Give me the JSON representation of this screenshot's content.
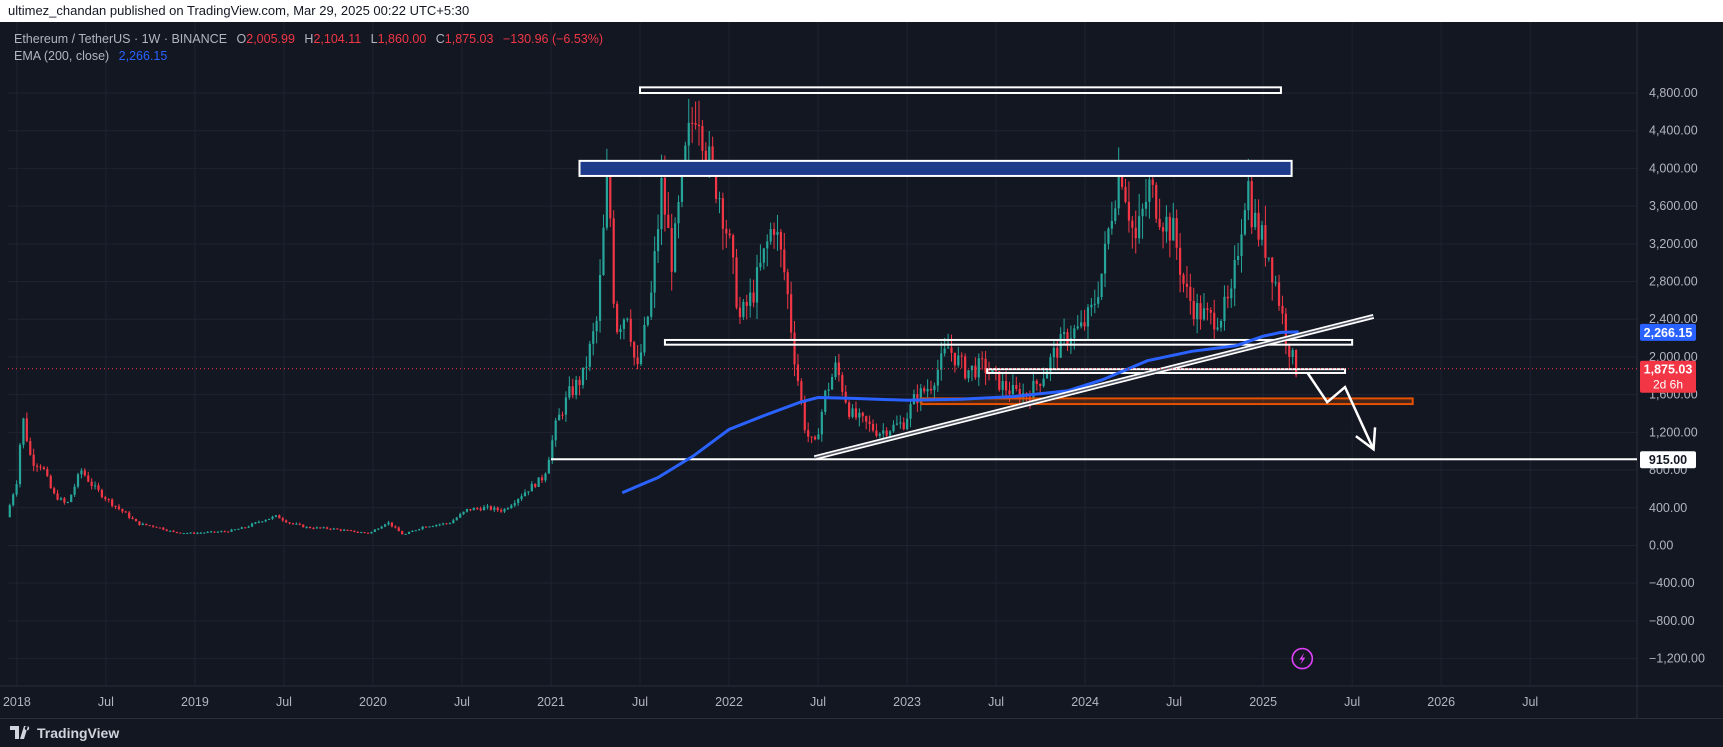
{
  "header": {
    "published": "ultimez_chandan published on TradingView.com, Mar 29, 2025 00:22 UTC+5:30"
  },
  "legend": {
    "symbol": "Ethereum / TetherUS · 1W · BINANCE",
    "open_label": "O",
    "open": "2,005.99",
    "high_label": "H",
    "high": "2,104.11",
    "low_label": "L",
    "low": "1,860.00",
    "close_label": "C",
    "close": "1,875.03",
    "change": "−130.96 (−6.53%)",
    "ema_label": "EMA (200, close)",
    "ema_value": "2,266.15"
  },
  "footer": {
    "brand": "TradingView"
  },
  "colors": {
    "background": "#131722",
    "up": "#26a69a",
    "down": "#f23645",
    "ema": "#2962ff",
    "zone_fill": "#1e3a8a",
    "support_zone": "#e65100"
  },
  "icons": [
    "tradingview-logo-icon",
    "lightning-icon"
  ],
  "chart_data": {
    "type": "candlestick",
    "symbol": "Ethereum / TetherUS",
    "timeframe": "1W",
    "ylim": [
      -1300,
      5150
    ],
    "y_ticks": [
      4800,
      4400,
      4000,
      3600,
      3200,
      2800,
      2400,
      2000,
      1600,
      1200,
      800,
      400,
      0,
      -400,
      -800,
      -1200
    ],
    "y_tick_labels": [
      "4,800.00",
      "4,400.00",
      "4,000.00",
      "3,600.00",
      "3,200.00",
      "2,800.00",
      "2,400.00",
      "2,000.00",
      "1,600.00",
      "1,200.00",
      "800.00",
      "400.00",
      "0.00",
      "−400.00",
      "−800.00",
      "−1,200.00"
    ],
    "x_ticks": [
      "2018",
      "Jul",
      "2019",
      "Jul",
      "2020",
      "Jul",
      "2021",
      "Jul",
      "2022",
      "Jul",
      "2023",
      "Jul",
      "2024",
      "Jul",
      "2025",
      "Jul",
      "2026",
      "Jul"
    ],
    "x_tick_dates": [
      2018.0,
      2018.5,
      2019.0,
      2019.5,
      2020.0,
      2020.5,
      2021.0,
      2021.5,
      2022.0,
      2022.5,
      2023.0,
      2023.5,
      2024.0,
      2024.5,
      2025.0,
      2025.5,
      2026.0,
      2026.5
    ],
    "x_range": [
      2017.95,
      2027.1
    ],
    "price_path": [
      [
        2017.96,
        300
      ],
      [
        2018.02,
        700
      ],
      [
        2018.05,
        1380
      ],
      [
        2018.1,
        900
      ],
      [
        2018.16,
        850
      ],
      [
        2018.22,
        550
      ],
      [
        2018.3,
        430
      ],
      [
        2018.38,
        800
      ],
      [
        2018.45,
        620
      ],
      [
        2018.55,
        450
      ],
      [
        2018.62,
        350
      ],
      [
        2018.7,
        230
      ],
      [
        2018.8,
        200
      ],
      [
        2018.9,
        140
      ],
      [
        2019.0,
        130
      ],
      [
        2019.1,
        140
      ],
      [
        2019.2,
        150
      ],
      [
        2019.3,
        190
      ],
      [
        2019.4,
        270
      ],
      [
        2019.48,
        310
      ],
      [
        2019.55,
        240
      ],
      [
        2019.65,
        190
      ],
      [
        2019.78,
        180
      ],
      [
        2019.9,
        150
      ],
      [
        2020.0,
        130
      ],
      [
        2020.1,
        250
      ],
      [
        2020.19,
        110
      ],
      [
        2020.3,
        200
      ],
      [
        2020.45,
        240
      ],
      [
        2020.55,
        380
      ],
      [
        2020.65,
        400
      ],
      [
        2020.75,
        370
      ],
      [
        2020.88,
        580
      ],
      [
        2020.98,
        730
      ],
      [
        2021.05,
        1300
      ],
      [
        2021.12,
        1600
      ],
      [
        2021.2,
        1800
      ],
      [
        2021.28,
        2400
      ],
      [
        2021.34,
        4000
      ],
      [
        2021.38,
        2300
      ],
      [
        2021.45,
        2500
      ],
      [
        2021.5,
        1800
      ],
      [
        2021.58,
        2600
      ],
      [
        2021.64,
        3800
      ],
      [
        2021.7,
        3000
      ],
      [
        2021.78,
        4200
      ],
      [
        2021.84,
        4750
      ],
      [
        2021.9,
        4100
      ],
      [
        2021.97,
        3700
      ],
      [
        2022.02,
        3200
      ],
      [
        2022.08,
        2400
      ],
      [
        2022.15,
        2650
      ],
      [
        2022.22,
        3100
      ],
      [
        2022.27,
        3450
      ],
      [
        2022.34,
        2800
      ],
      [
        2022.38,
        2100
      ],
      [
        2022.45,
        1200
      ],
      [
        2022.5,
        1050
      ],
      [
        2022.56,
        1600
      ],
      [
        2022.62,
        1900
      ],
      [
        2022.7,
        1400
      ],
      [
        2022.78,
        1300
      ],
      [
        2022.86,
        1200
      ],
      [
        2022.93,
        1250
      ],
      [
        2023.0,
        1300
      ],
      [
        2023.06,
        1550
      ],
      [
        2023.15,
        1700
      ],
      [
        2023.25,
        2100
      ],
      [
        2023.35,
        1850
      ],
      [
        2023.45,
        1900
      ],
      [
        2023.55,
        1700
      ],
      [
        2023.62,
        1620
      ],
      [
        2023.7,
        1600
      ],
      [
        2023.78,
        1800
      ],
      [
        2023.85,
        2050
      ],
      [
        2023.93,
        2250
      ],
      [
        2024.0,
        2300
      ],
      [
        2024.06,
        2500
      ],
      [
        2024.12,
        2950
      ],
      [
        2024.18,
        3700
      ],
      [
        2024.22,
        4050
      ],
      [
        2024.3,
        3200
      ],
      [
        2024.38,
        3800
      ],
      [
        2024.45,
        3500
      ],
      [
        2024.52,
        3300
      ],
      [
        2024.58,
        2700
      ],
      [
        2024.64,
        2500
      ],
      [
        2024.72,
        2400
      ],
      [
        2024.78,
        2450
      ],
      [
        2024.84,
        2600
      ],
      [
        2024.88,
        3200
      ],
      [
        2024.93,
        3900
      ],
      [
        2024.96,
        3500
      ],
      [
        2025.0,
        3300
      ],
      [
        2025.05,
        3100
      ],
      [
        2025.1,
        2700
      ],
      [
        2025.15,
        2200
      ],
      [
        2025.2,
        1875
      ]
    ],
    "ema_path": [
      [
        2021.4,
        560
      ],
      [
        2021.6,
        720
      ],
      [
        2021.8,
        950
      ],
      [
        2022.0,
        1230
      ],
      [
        2022.2,
        1380
      ],
      [
        2022.4,
        1520
      ],
      [
        2022.5,
        1570
      ],
      [
        2022.7,
        1560
      ],
      [
        2023.0,
        1540
      ],
      [
        2023.3,
        1550
      ],
      [
        2023.6,
        1580
      ],
      [
        2023.9,
        1640
      ],
      [
        2024.1,
        1760
      ],
      [
        2024.35,
        1960
      ],
      [
        2024.6,
        2060
      ],
      [
        2024.85,
        2120
      ],
      [
        2025.0,
        2220
      ],
      [
        2025.1,
        2260
      ],
      [
        2025.2,
        2266
      ]
    ],
    "annotations": {
      "top_box": [
        4800,
        4860
      ],
      "resistance_zone": [
        3920,
        4080
      ],
      "support_box_upper": [
        2130,
        2180
      ],
      "support_box_lower": [
        1830,
        1870
      ],
      "orange_zone": [
        1500,
        1560
      ],
      "horizontal_support": 915,
      "trendline": {
        "from": [
          2022.48,
          930
        ],
        "to": [
          2025.62,
          2430
        ]
      },
      "projection_arrow": [
        [
          2025.25,
          1830
        ],
        [
          2025.36,
          1520
        ],
        [
          2025.46,
          1680
        ],
        [
          2025.62,
          1020
        ]
      ]
    },
    "current_price": "1,875.03",
    "countdown": "2d 6h",
    "ema_price_label": "2,266.15",
    "support_price_label": "915.00"
  }
}
